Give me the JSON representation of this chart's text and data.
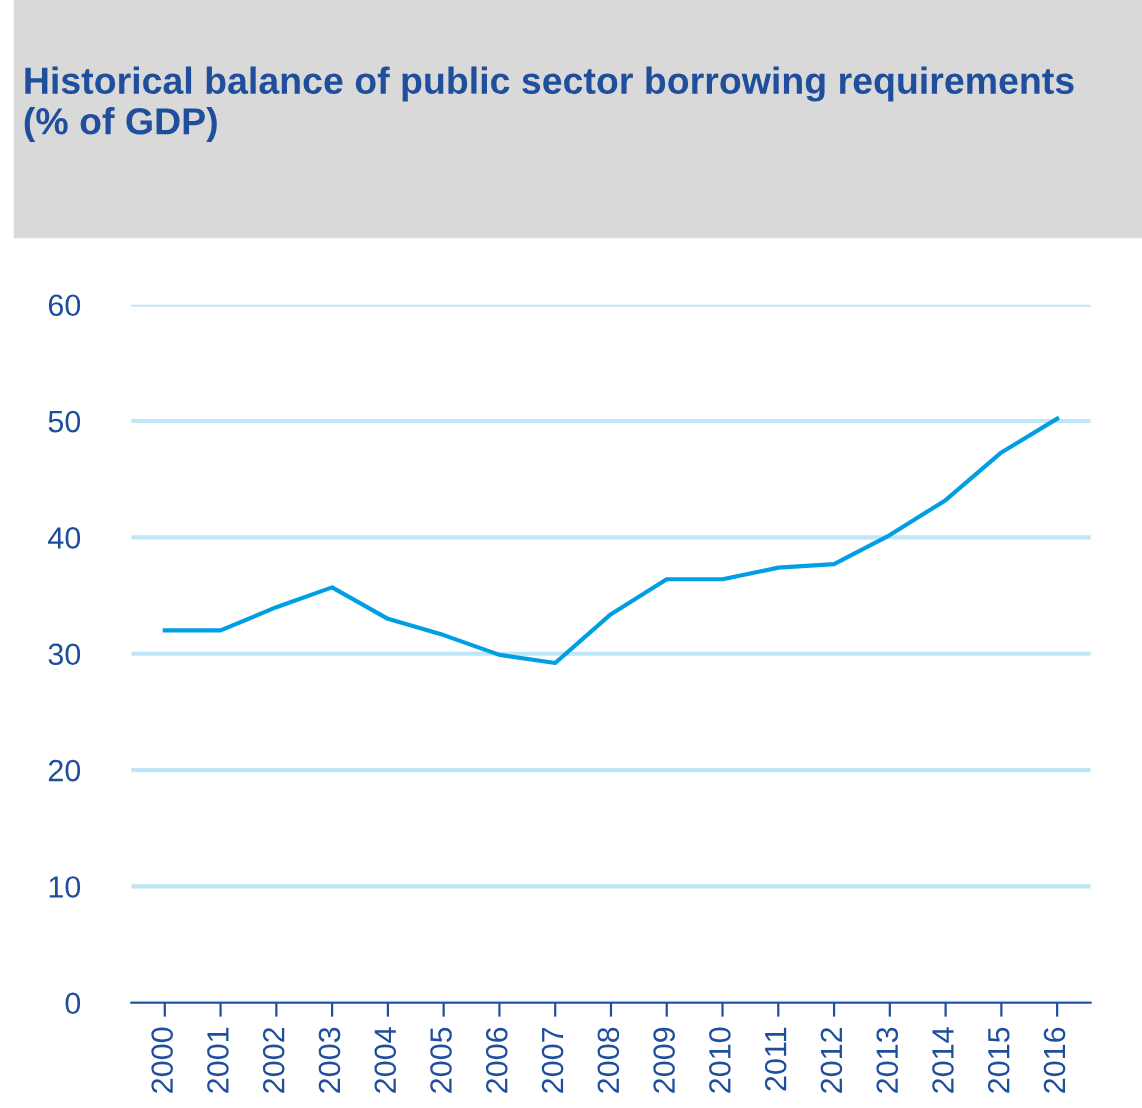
{
  "chart_data": {
    "type": "line",
    "title": "Historical balance of public sector borrowing requirements\n(% of GDP)",
    "categories": [
      "2000",
      "2001",
      "2002",
      "2003",
      "2004",
      "2005",
      "2006",
      "2007",
      "2008",
      "2009",
      "2010",
      "2011",
      "2012",
      "2013",
      "2014",
      "2015",
      "2016"
    ],
    "series": [
      {
        "color": "#009fe3",
        "values": [
          32.0,
          32.0,
          34.0,
          35.7,
          33.0,
          31.6,
          29.9,
          29.2,
          33.4,
          36.4,
          36.4,
          37.4,
          37.7,
          40.2,
          43.2,
          47.3,
          50.2
        ]
      }
    ],
    "ylim": [
      0,
      60
    ],
    "yticks": [
      0,
      10,
      20,
      30,
      40,
      50,
      60
    ],
    "grid": "y",
    "legend": false,
    "marker": "none",
    "line_style": "solid"
  }
}
